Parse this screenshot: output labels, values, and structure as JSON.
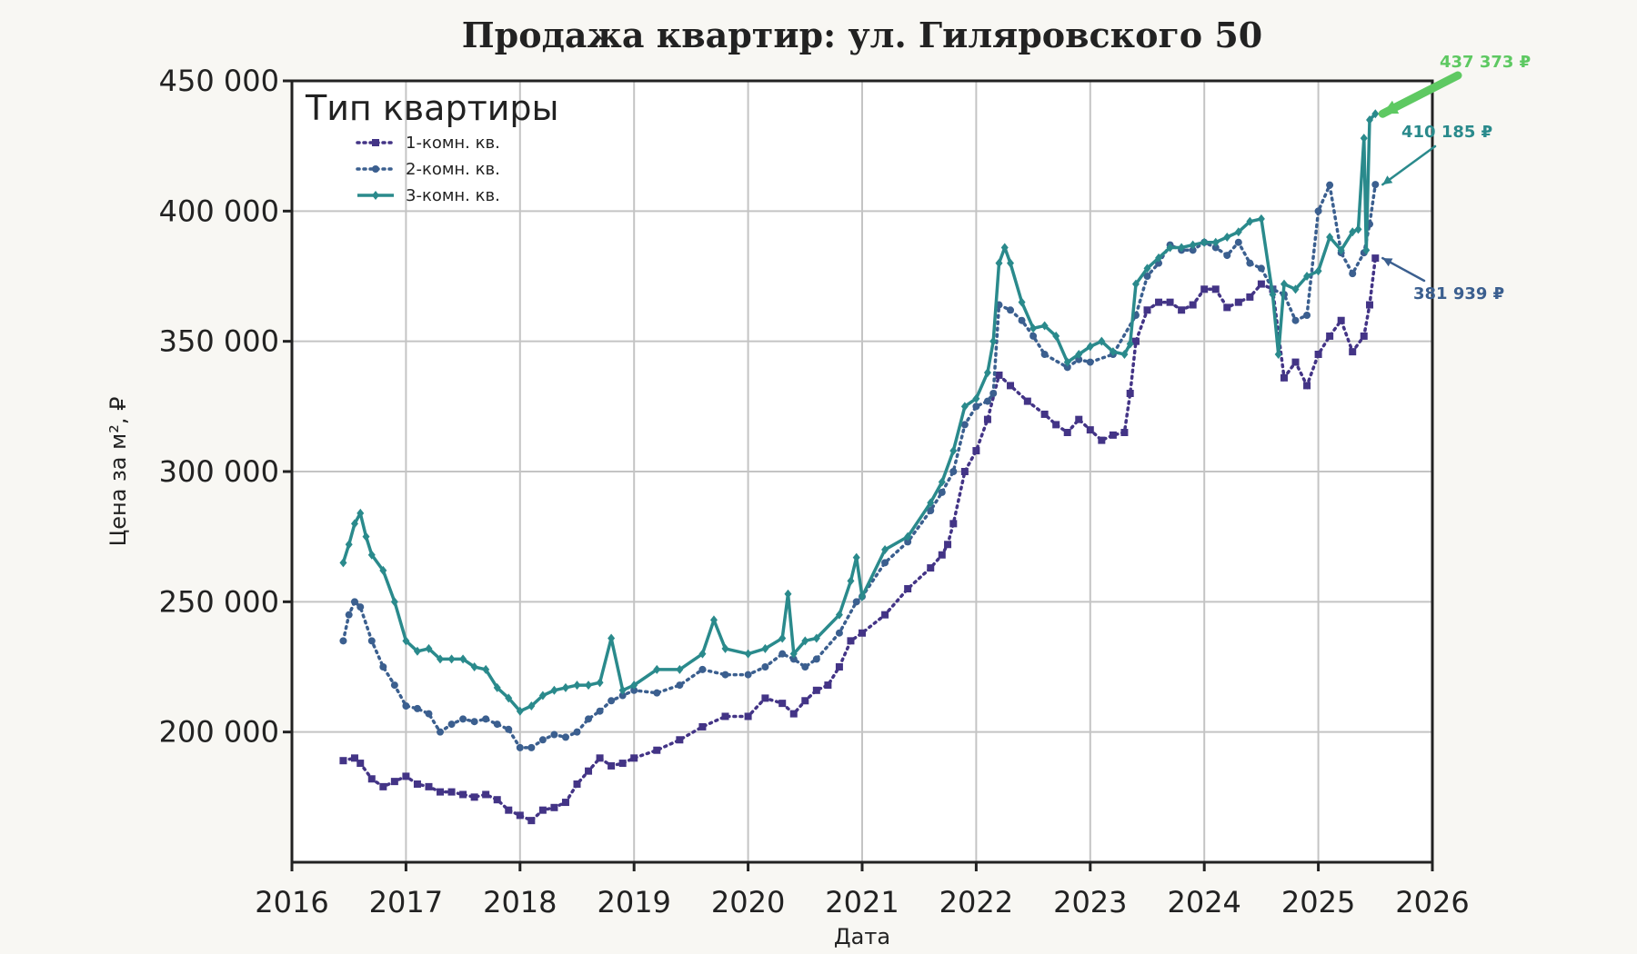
{
  "chart_data": {
    "type": "line",
    "title": "Продажа квартир: ул. Гиляровского 50",
    "xlabel": "Дата",
    "ylabel": "Цена за м², ₽",
    "xlim": [
      2016,
      2026
    ],
    "ylim": [
      150000,
      450000
    ],
    "x_ticks": [
      "2016",
      "2017",
      "2018",
      "2019",
      "2020",
      "2021",
      "2022",
      "2023",
      "2024",
      "2025",
      "2026"
    ],
    "y_ticks": [
      "200 000",
      "250 000",
      "300 000",
      "350 000",
      "400 000",
      "450 000"
    ],
    "y_tick_values": [
      200000,
      250000,
      300000,
      350000,
      400000,
      450000
    ],
    "grid": true,
    "legend": {
      "title": "Тип квартиры",
      "position": "top-left"
    },
    "series": [
      {
        "name": "1-комн. кв.",
        "color": "#433486",
        "style": "dotted",
        "marker": "square",
        "x": [
          2016.45,
          2016.55,
          2016.6,
          2016.7,
          2016.8,
          2016.9,
          2017.0,
          2017.1,
          2017.2,
          2017.3,
          2017.4,
          2017.5,
          2017.6,
          2017.7,
          2017.8,
          2017.9,
          2018.0,
          2018.1,
          2018.2,
          2018.3,
          2018.4,
          2018.5,
          2018.6,
          2018.7,
          2018.8,
          2018.9,
          2019.0,
          2019.2,
          2019.4,
          2019.6,
          2019.8,
          2020.0,
          2020.15,
          2020.3,
          2020.4,
          2020.5,
          2020.6,
          2020.7,
          2020.8,
          2020.9,
          2021.0,
          2021.2,
          2021.4,
          2021.6,
          2021.7,
          2021.75,
          2021.8,
          2021.9,
          2022.0,
          2022.1,
          2022.2,
          2022.3,
          2022.45,
          2022.6,
          2022.7,
          2022.8,
          2022.9,
          2023.0,
          2023.1,
          2023.2,
          2023.3,
          2023.35,
          2023.4,
          2023.5,
          2023.6,
          2023.7,
          2023.8,
          2023.9,
          2024.0,
          2024.1,
          2024.2,
          2024.3,
          2024.4,
          2024.5,
          2024.6,
          2024.7,
          2024.8,
          2024.9,
          2025.0,
          2025.1,
          2025.2,
          2025.3,
          2025.4,
          2025.45,
          2025.5
        ],
        "y": [
          189000,
          190000,
          188000,
          182000,
          179000,
          181000,
          183000,
          180000,
          179000,
          177000,
          177000,
          176000,
          175000,
          176000,
          174000,
          170000,
          168000,
          166000,
          170000,
          171000,
          173000,
          180000,
          185000,
          190000,
          187000,
          188000,
          190000,
          193000,
          197000,
          202000,
          206000,
          206000,
          213000,
          211000,
          207000,
          212000,
          216000,
          218000,
          225000,
          235000,
          238000,
          245000,
          255000,
          263000,
          268000,
          272000,
          280000,
          300000,
          308000,
          320000,
          337000,
          333000,
          327000,
          322000,
          318000,
          315000,
          320000,
          316000,
          312000,
          314000,
          315000,
          330000,
          350000,
          362000,
          365000,
          365000,
          362000,
          364000,
          370000,
          370000,
          363000,
          365000,
          367000,
          372000,
          370000,
          336000,
          342000,
          333000,
          345000,
          352000,
          358000,
          346000,
          352000,
          364000,
          381939
        ]
      },
      {
        "name": "2-комн. кв.",
        "color": "#3b5f8f",
        "style": "dotted",
        "marker": "circle",
        "x": [
          2016.45,
          2016.5,
          2016.55,
          2016.6,
          2016.7,
          2016.8,
          2016.9,
          2017.0,
          2017.1,
          2017.2,
          2017.3,
          2017.4,
          2017.5,
          2017.6,
          2017.7,
          2017.8,
          2017.9,
          2018.0,
          2018.1,
          2018.2,
          2018.3,
          2018.4,
          2018.5,
          2018.6,
          2018.7,
          2018.8,
          2018.9,
          2019.0,
          2019.2,
          2019.4,
          2019.6,
          2019.8,
          2020.0,
          2020.15,
          2020.3,
          2020.4,
          2020.5,
          2020.6,
          2020.8,
          2020.95,
          2021.0,
          2021.2,
          2021.4,
          2021.6,
          2021.7,
          2021.8,
          2021.9,
          2022.0,
          2022.1,
          2022.15,
          2022.2,
          2022.3,
          2022.4,
          2022.5,
          2022.6,
          2022.8,
          2022.9,
          2023.0,
          2023.2,
          2023.4,
          2023.5,
          2023.6,
          2023.7,
          2023.8,
          2023.9,
          2024.0,
          2024.1,
          2024.2,
          2024.3,
          2024.4,
          2024.5,
          2024.6,
          2024.7,
          2024.8,
          2024.9,
          2025.0,
          2025.1,
          2025.2,
          2025.3,
          2025.4,
          2025.45,
          2025.5
        ],
        "y": [
          235000,
          245000,
          250000,
          248000,
          235000,
          225000,
          218000,
          210000,
          209000,
          207000,
          200000,
          203000,
          205000,
          204000,
          205000,
          203000,
          201000,
          194000,
          194000,
          197000,
          199000,
          198000,
          200000,
          205000,
          208000,
          212000,
          214000,
          216000,
          215000,
          218000,
          224000,
          222000,
          222000,
          225000,
          230000,
          228000,
          225000,
          228000,
          238000,
          250000,
          252000,
          265000,
          273000,
          285000,
          292000,
          300000,
          318000,
          325000,
          327000,
          330000,
          364000,
          362000,
          358000,
          352000,
          345000,
          340000,
          343000,
          342000,
          345000,
          360000,
          375000,
          380000,
          387000,
          385000,
          385000,
          388000,
          386000,
          383000,
          388000,
          380000,
          378000,
          370000,
          368000,
          358000,
          360000,
          400000,
          410000,
          384000,
          376000,
          384000,
          395000,
          410185
        ]
      },
      {
        "name": "3-комн. кв.",
        "color": "#2a8a8c",
        "style": "solid",
        "marker": "diamond",
        "x": [
          2016.45,
          2016.5,
          2016.55,
          2016.6,
          2016.65,
          2016.7,
          2016.8,
          2016.9,
          2017.0,
          2017.1,
          2017.2,
          2017.3,
          2017.4,
          2017.5,
          2017.6,
          2017.7,
          2017.8,
          2017.9,
          2018.0,
          2018.1,
          2018.2,
          2018.3,
          2018.4,
          2018.5,
          2018.6,
          2018.7,
          2018.8,
          2018.9,
          2019.0,
          2019.2,
          2019.4,
          2019.6,
          2019.7,
          2019.8,
          2020.0,
          2020.15,
          2020.3,
          2020.35,
          2020.4,
          2020.5,
          2020.6,
          2020.8,
          2020.9,
          2020.95,
          2021.0,
          2021.2,
          2021.4,
          2021.6,
          2021.7,
          2021.8,
          2021.9,
          2022.0,
          2022.1,
          2022.15,
          2022.2,
          2022.25,
          2022.3,
          2022.4,
          2022.5,
          2022.6,
          2022.7,
          2022.8,
          2022.9,
          2023.0,
          2023.1,
          2023.2,
          2023.3,
          2023.35,
          2023.4,
          2023.5,
          2023.6,
          2023.7,
          2023.8,
          2023.9,
          2024.0,
          2024.1,
          2024.2,
          2024.3,
          2024.4,
          2024.5,
          2024.6,
          2024.65,
          2024.7,
          2024.8,
          2024.9,
          2025.0,
          2025.1,
          2025.2,
          2025.3,
          2025.35,
          2025.4,
          2025.42,
          2025.45,
          2025.5
        ],
        "y": [
          265000,
          272000,
          280000,
          284000,
          275000,
          268000,
          262000,
          250000,
          235000,
          231000,
          232000,
          228000,
          228000,
          228000,
          225000,
          224000,
          217000,
          213000,
          208000,
          210000,
          214000,
          216000,
          217000,
          218000,
          218000,
          219000,
          236000,
          216000,
          218000,
          224000,
          224000,
          230000,
          243000,
          232000,
          230000,
          232000,
          236000,
          253000,
          230000,
          235000,
          236000,
          245000,
          258000,
          267000,
          252000,
          270000,
          275000,
          288000,
          296000,
          308000,
          325000,
          328000,
          338000,
          350000,
          380000,
          386000,
          380000,
          365000,
          355000,
          356000,
          352000,
          342000,
          345000,
          348000,
          350000,
          346000,
          345000,
          349000,
          372000,
          378000,
          382000,
          386000,
          386000,
          387000,
          388000,
          388000,
          390000,
          392000,
          396000,
          397000,
          368000,
          345000,
          372000,
          370000,
          375000,
          377000,
          390000,
          385000,
          392000,
          393000,
          428000,
          385000,
          435000,
          437373
        ]
      }
    ],
    "annotations": [
      {
        "text": "437 373 ₽",
        "series": "3-комн. кв.",
        "color": "#5ec962"
      },
      {
        "text": "410 185 ₽",
        "series": "2-комн. кв.",
        "color": "#2a8a8c"
      },
      {
        "text": "381 939 ₽",
        "series": "1-комн. кв.",
        "color": "#3b5f8f"
      }
    ]
  }
}
